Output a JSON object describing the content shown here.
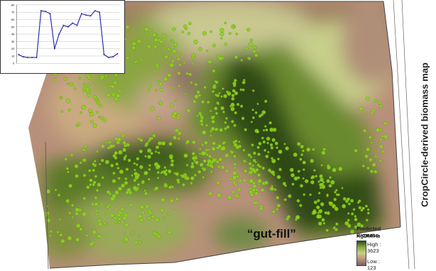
{
  "map": {
    "vertical_title": "CropCircle-derived biomass map",
    "annotation": "“gut-fill”",
    "legend": {
      "title": "Predicted Biomass",
      "unit": "KgDM/Ha",
      "high_label": "High : 3623",
      "low_label": "Low : 123",
      "colors": [
        "#2f4a16",
        "#8ba640",
        "#c8d08a",
        "#b8907a",
        "#7c5f5e"
      ]
    },
    "point_color": "#8fd21e"
  },
  "inset_chart": {
    "y_ticks": [
      "0",
      "10",
      "20",
      "30",
      "40",
      "50",
      "60",
      "70",
      "80"
    ]
  },
  "chart_data": {
    "type": "line",
    "ylim": [
      0,
      80
    ],
    "series": [
      {
        "values": [
          12,
          9,
          8,
          8,
          8,
          72,
          71,
          68,
          20,
          40,
          52,
          50,
          55,
          52,
          68,
          66,
          65,
          72,
          70,
          12,
          8,
          9,
          13
        ]
      }
    ]
  }
}
